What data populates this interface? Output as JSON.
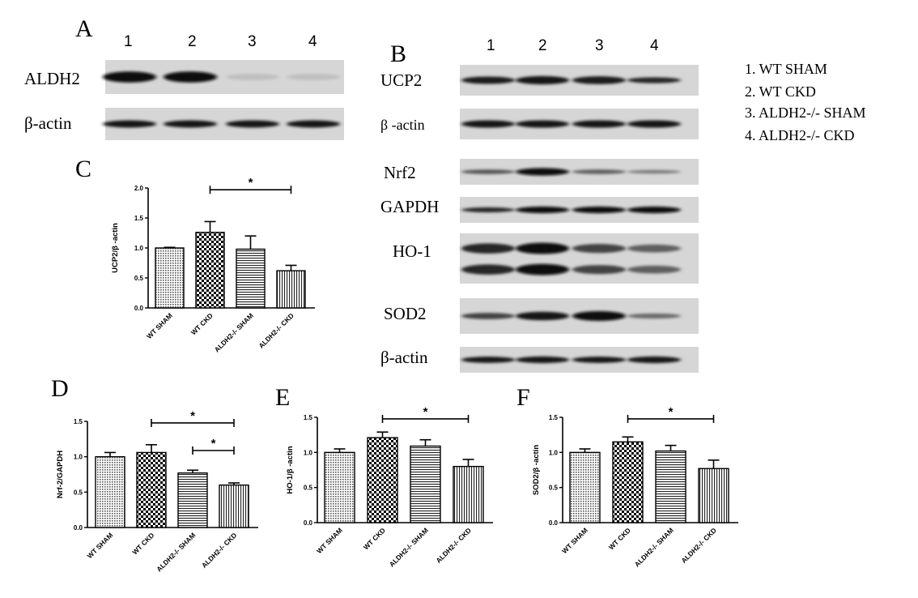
{
  "panel_letters": {
    "A": "A",
    "B": "B",
    "C": "C",
    "D": "D",
    "E": "E",
    "F": "F"
  },
  "lanes": [
    "1",
    "2",
    "3",
    "4"
  ],
  "legend": [
    "1. WT SHAM",
    "2. WT  CKD",
    "3.  ALDH2-/-  SHAM",
    "4.  ALDH2-/-   CKD"
  ],
  "blots_A": [
    {
      "label": "ALDH2",
      "intensities": [
        1.0,
        1.0,
        0.05,
        0.05
      ],
      "thickness": [
        1.0,
        1.0,
        0.6,
        0.6
      ]
    },
    {
      "label": "β-actin",
      "intensities": [
        0.95,
        0.95,
        0.95,
        0.95
      ],
      "thickness": [
        0.7,
        0.7,
        0.7,
        0.7
      ]
    }
  ],
  "blots_B": [
    {
      "label": "UCP2",
      "intensities": [
        0.9,
        0.95,
        0.9,
        0.85
      ],
      "thickness": [
        0.75,
        0.85,
        0.8,
        0.6
      ]
    },
    {
      "label": "β -actin",
      "intensities": [
        0.95,
        0.95,
        0.95,
        0.95
      ],
      "thickness": [
        0.75,
        0.75,
        0.75,
        0.75
      ]
    },
    {
      "label": "Nrf2",
      "intensities": [
        0.6,
        1.0,
        0.55,
        0.4
      ],
      "thickness": [
        0.55,
        0.9,
        0.55,
        0.45
      ]
    },
    {
      "label": "GAPDH",
      "intensities": [
        0.85,
        1.0,
        1.0,
        1.0
      ],
      "thickness": [
        0.6,
        0.8,
        0.8,
        0.8
      ]
    },
    {
      "label": "HO-1",
      "intensities": [
        0.85,
        1.0,
        0.7,
        0.55
      ],
      "thickness": [
        0.9,
        1.0,
        0.8,
        0.7
      ],
      "double": true
    },
    {
      "label": "SOD2",
      "intensities": [
        0.7,
        0.95,
        1.0,
        0.5
      ],
      "thickness": [
        0.55,
        0.75,
        0.85,
        0.45
      ]
    },
    {
      "label": "β-actin",
      "intensities": [
        0.95,
        0.95,
        0.95,
        0.95
      ],
      "thickness": [
        0.75,
        0.8,
        0.75,
        0.8
      ]
    }
  ],
  "chart_data": [
    {
      "panel": "C",
      "type": "bar",
      "categories": [
        "WT SHAM",
        "WT CKD",
        "ALDH2-/- SHAM",
        "ALDH2-/- CKD"
      ],
      "values": [
        1.0,
        1.26,
        0.98,
        0.62
      ],
      "errors": [
        0.01,
        0.18,
        0.22,
        0.09
      ],
      "ylabel": "UCP2/β -actin",
      "ylim": [
        0,
        2.0
      ],
      "yticks": [
        "0.0",
        "0.5",
        "1.0",
        "1.5",
        "2.0"
      ],
      "significance": [
        {
          "from": 1,
          "to": 3,
          "label": "*"
        }
      ]
    },
    {
      "panel": "D",
      "type": "bar",
      "categories": [
        "WT SHAM",
        "WT CKD",
        "ALDH2-/- SHAM",
        "ALDH2-/- CKD"
      ],
      "values": [
        1.0,
        1.06,
        0.77,
        0.6
      ],
      "errors": [
        0.06,
        0.11,
        0.04,
        0.03
      ],
      "ylabel": "Nrf-2/GAPDH",
      "ylim": [
        0,
        1.5
      ],
      "yticks": [
        "0.0",
        "0.5",
        "1.0",
        "1.5"
      ],
      "significance": [
        {
          "from": 1,
          "to": 3,
          "label": "*"
        },
        {
          "from": 2,
          "to": 3,
          "label": "*"
        }
      ]
    },
    {
      "panel": "E",
      "type": "bar",
      "categories": [
        "WT SHAM",
        "WT CKD",
        "ALDH2-/- SHAM",
        "ALDH2-/- CKD"
      ],
      "values": [
        1.0,
        1.21,
        1.09,
        0.8
      ],
      "errors": [
        0.05,
        0.08,
        0.09,
        0.1
      ],
      "ylabel": "HO-1/β -actin",
      "ylim": [
        0,
        1.5
      ],
      "yticks": [
        "0.0",
        "0.5",
        "1.0",
        "1.5"
      ],
      "significance": [
        {
          "from": 1,
          "to": 3,
          "label": "*"
        }
      ]
    },
    {
      "panel": "F",
      "type": "bar",
      "categories": [
        "WT SHAM",
        "WT CKD",
        "ALDH2-/- SHAM",
        "ALDH2-/- CKD"
      ],
      "values": [
        1.0,
        1.15,
        1.02,
        0.77
      ],
      "errors": [
        0.05,
        0.07,
        0.08,
        0.12
      ],
      "ylabel": "SOD2/β -actin",
      "ylim": [
        0,
        1.5
      ],
      "yticks": [
        "0.0",
        "0.5",
        "1.0",
        "1.5"
      ],
      "significance": [
        {
          "from": 1,
          "to": 3,
          "label": "*"
        }
      ]
    }
  ]
}
